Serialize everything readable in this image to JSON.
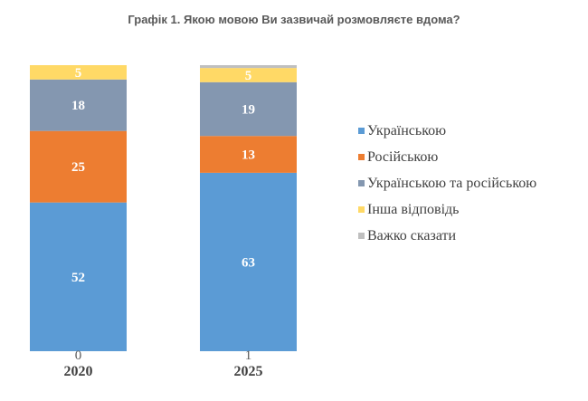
{
  "chart_data": {
    "type": "bar",
    "stacked": true,
    "title": "Графік 1. Якою мовою Ви зазвичай розмовляєте вдома?",
    "categories": [
      "2020",
      "2025"
    ],
    "series": [
      {
        "name": "Українською",
        "values": [
          52,
          63
        ],
        "color": "#5B9BD5"
      },
      {
        "name": "Російською",
        "values": [
          25,
          13
        ],
        "color": "#ED7D31"
      },
      {
        "name": "Українською та російською",
        "values": [
          18,
          19
        ],
        "color": "#8497B0"
      },
      {
        "name": "Інша відповідь",
        "values": [
          5,
          5
        ],
        "color": "#FFD966"
      },
      {
        "name": "Важко сказати",
        "values": [
          0,
          1
        ],
        "color": "#BFBFBF"
      }
    ],
    "legend_position": "right",
    "grid": false
  }
}
